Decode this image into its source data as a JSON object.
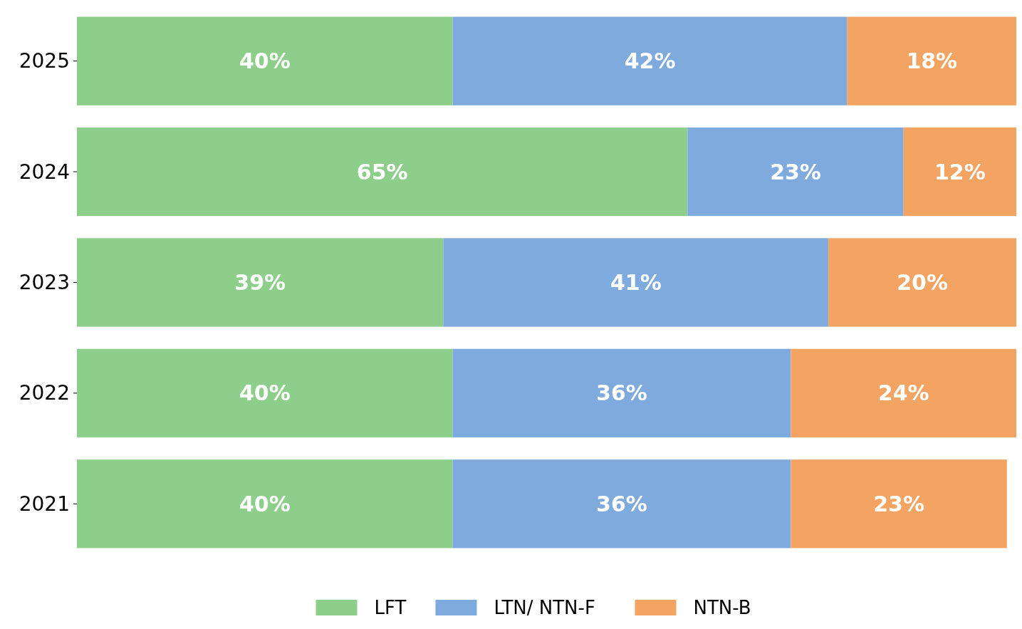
{
  "chart_data": {
    "type": "bar",
    "orientation": "horizontal",
    "stacked": true,
    "categories": [
      "2025",
      "2024",
      "2023",
      "2022",
      "2021"
    ],
    "series": [
      {
        "name": "LFT",
        "color": "#8dcf8a",
        "values": [
          40,
          65,
          39,
          40,
          40
        ],
        "value_labels": [
          "40%",
          "65%",
          "39%",
          "40%",
          "40%"
        ]
      },
      {
        "name": "LTN/ NTN-F",
        "color": "#7eaadd",
        "values": [
          42,
          23,
          41,
          36,
          36
        ],
        "value_labels": [
          "42%",
          "23%",
          "41%",
          "36%",
          "36%"
        ]
      },
      {
        "name": "NTN-B",
        "color": "#f4a462",
        "values": [
          18,
          12,
          20,
          24,
          23
        ],
        "value_labels": [
          "18%",
          "12%",
          "20%",
          "24%",
          "23%"
        ]
      }
    ],
    "legend": "bottom",
    "tick_labels": "y"
  }
}
